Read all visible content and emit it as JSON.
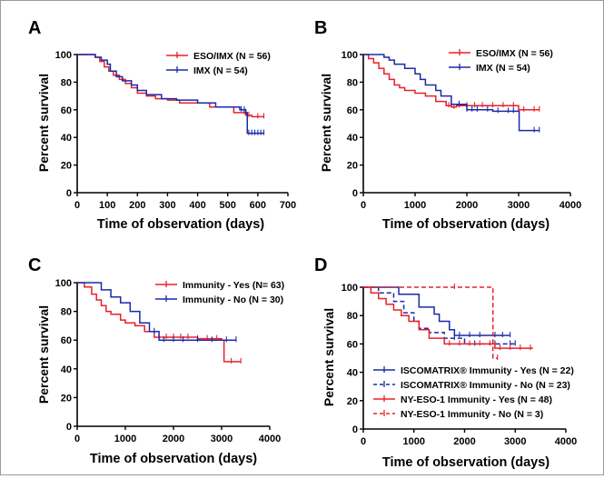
{
  "chart_data": [
    {
      "type": "line",
      "panel_label": "A",
      "xlabel": "Time of observation (days)",
      "ylabel": "Percent survival",
      "xlim": [
        0,
        700
      ],
      "ylim": [
        0,
        100
      ],
      "x_ticks": [
        "0",
        "100",
        "200",
        "300",
        "400",
        "500",
        "600",
        "700"
      ],
      "y_ticks": [
        "0",
        "20",
        "40",
        "60",
        "80",
        "100"
      ],
      "legend_position": "top-right",
      "series": [
        {
          "name": "ESO/IMX (N = 56)",
          "color": "#e8202a",
          "dash": "solid",
          "x": [
            0,
            45,
            60,
            75,
            90,
            105,
            120,
            140,
            160,
            180,
            200,
            230,
            260,
            300,
            340,
            400,
            440,
            480,
            520,
            560,
            580,
            620
          ],
          "y": [
            100,
            100,
            98,
            95,
            91,
            88,
            85,
            82,
            79,
            76,
            72,
            70,
            68,
            67,
            65,
            65,
            62,
            62,
            58,
            56,
            55,
            55
          ],
          "censors": [
            555,
            570,
            600,
            620
          ]
        },
        {
          "name": "IMX (N = 54)",
          "color": "#1a2aa8",
          "dash": "solid",
          "x": [
            0,
            60,
            80,
            100,
            110,
            130,
            150,
            180,
            200,
            230,
            280,
            330,
            400,
            460,
            500,
            540,
            560,
            565,
            590,
            620
          ],
          "y": [
            100,
            98,
            96,
            93,
            88,
            84,
            81,
            78,
            74,
            71,
            68,
            67,
            65,
            62,
            62,
            60,
            58,
            43,
            43,
            43
          ],
          "censors": [
            545,
            555,
            560,
            570,
            580,
            590,
            600,
            610,
            620
          ]
        }
      ]
    },
    {
      "type": "line",
      "panel_label": "B",
      "xlabel": "Time of observation (days)",
      "ylabel": "Percent survival",
      "xlim": [
        0,
        4000
      ],
      "ylim": [
        0,
        100
      ],
      "x_ticks": [
        "0",
        "1000",
        "2000",
        "3000",
        "4000"
      ],
      "y_ticks": [
        "0",
        "20",
        "40",
        "60",
        "80",
        "100"
      ],
      "legend_position": "top-right",
      "series": [
        {
          "name": "ESO/IMX (N = 56)",
          "color": "#e8202a",
          "dash": "solid",
          "x": [
            0,
            100,
            200,
            300,
            400,
            500,
            600,
            700,
            800,
            1000,
            1200,
            1400,
            1600,
            1700,
            1800,
            2000,
            2500,
            3000,
            3400
          ],
          "y": [
            100,
            97,
            94,
            90,
            86,
            82,
            78,
            76,
            74,
            72,
            70,
            66,
            63,
            62,
            63,
            63,
            63,
            60,
            60
          ],
          "censors": [
            1650,
            1750,
            1850,
            2000,
            2150,
            2300,
            2500,
            2700,
            2900,
            3100,
            3300,
            3400
          ]
        },
        {
          "name": "IMX (N = 54)",
          "color": "#1a2aa8",
          "dash": "solid",
          "x": [
            0,
            200,
            400,
            500,
            600,
            800,
            1000,
            1100,
            1200,
            1400,
            1500,
            1700,
            2000,
            2500,
            3000,
            3010,
            3300,
            3400
          ],
          "y": [
            100,
            100,
            98,
            96,
            93,
            90,
            86,
            82,
            78,
            74,
            70,
            64,
            60,
            59,
            59,
            45,
            45,
            45
          ],
          "censors": [
            1700,
            1850,
            2000,
            2100,
            2200,
            2400,
            2600,
            2800,
            2900,
            3300,
            3400
          ]
        }
      ]
    },
    {
      "type": "line",
      "panel_label": "C",
      "xlabel": "Time of observation (days)",
      "ylabel": "Percent survival",
      "xlim": [
        0,
        4000
      ],
      "ylim": [
        0,
        100
      ],
      "x_ticks": [
        "0",
        "1000",
        "2000",
        "3000",
        "4000"
      ],
      "y_ticks": [
        "0",
        "20",
        "40",
        "60",
        "80",
        "100"
      ],
      "legend_position": "top-right",
      "series": [
        {
          "name": "Immunity - Yes (N= 63)",
          "color": "#e8202a",
          "dash": "solid",
          "x": [
            0,
            150,
            300,
            400,
            500,
            600,
            700,
            900,
            1000,
            1200,
            1400,
            1600,
            2000,
            2500,
            3000,
            3050,
            3400
          ],
          "y": [
            100,
            97,
            92,
            88,
            84,
            80,
            78,
            74,
            72,
            70,
            66,
            62,
            62,
            61,
            60,
            45,
            45
          ],
          "censors": [
            1700,
            1850,
            2000,
            2150,
            2300,
            2500,
            2700,
            2900,
            3200,
            3400
          ]
        },
        {
          "name": "Immunity - No (N = 30)",
          "color": "#1a2aa8",
          "dash": "solid",
          "x": [
            0,
            300,
            500,
            700,
            900,
            1100,
            1300,
            1500,
            1700,
            2000,
            2500,
            3000,
            3300
          ],
          "y": [
            100,
            100,
            95,
            90,
            86,
            80,
            72,
            66,
            60,
            60,
            60,
            60,
            60
          ],
          "censors": [
            1600,
            1800,
            2000,
            2200,
            2500,
            2800,
            3100,
            3300
          ]
        }
      ]
    },
    {
      "type": "line",
      "panel_label": "D",
      "xlabel": "Time of observation (days)",
      "ylabel": "Percent survival",
      "xlim": [
        0,
        4000
      ],
      "ylim": [
        0,
        100
      ],
      "x_ticks": [
        "0",
        "1000",
        "2000",
        "3000",
        "4000"
      ],
      "y_ticks": [
        "0",
        "20",
        "40",
        "60",
        "80",
        "100"
      ],
      "legend_position": "bottom-left",
      "series": [
        {
          "name": "ISCOMATRIX® Immunity - Yes (N = 22)",
          "color": "#1a2aa8",
          "dash": "solid",
          "x": [
            0,
            500,
            700,
            1100,
            1200,
            1400,
            1500,
            1700,
            1800,
            2300,
            2700,
            2900
          ],
          "y": [
            100,
            100,
            95,
            86,
            86,
            81,
            76,
            70,
            66,
            66,
            66,
            66
          ],
          "censors": [
            1900,
            2100,
            2300,
            2600,
            2750,
            2900
          ]
        },
        {
          "name": "ISCOMATRIX® Immunity - No (N = 23)",
          "color": "#1a2aa8",
          "dash": "dashed",
          "x": [
            0,
            300,
            600,
            800,
            1000,
            1100,
            1300,
            1600,
            2000,
            2500,
            3000
          ],
          "y": [
            100,
            96,
            90,
            82,
            76,
            71,
            68,
            64,
            60,
            60,
            60
          ],
          "censors": [
            1800,
            2200,
            2600,
            2900,
            3000
          ]
        },
        {
          "name": "NY-ESO-1 Immunity - Yes (N = 48)",
          "color": "#e8202a",
          "dash": "solid",
          "x": [
            0,
            150,
            300,
            450,
            600,
            750,
            900,
            1100,
            1300,
            1600,
            2000,
            2500,
            2600,
            3000,
            3350
          ],
          "y": [
            100,
            96,
            92,
            88,
            84,
            80,
            76,
            70,
            64,
            60,
            60,
            60,
            57,
            57,
            57
          ],
          "censors": [
            1700,
            1900,
            2100,
            2300,
            2500,
            2700,
            2900,
            3100,
            3300
          ]
        },
        {
          "name": "NY-ESO-1 Immunity - No (N = 3)",
          "color": "#e8202a",
          "dash": "dashed",
          "x": [
            0,
            2550,
            2560,
            2650
          ],
          "y": [
            100,
            100,
            50,
            50
          ],
          "censors": [
            1800,
            2650
          ]
        }
      ]
    }
  ]
}
